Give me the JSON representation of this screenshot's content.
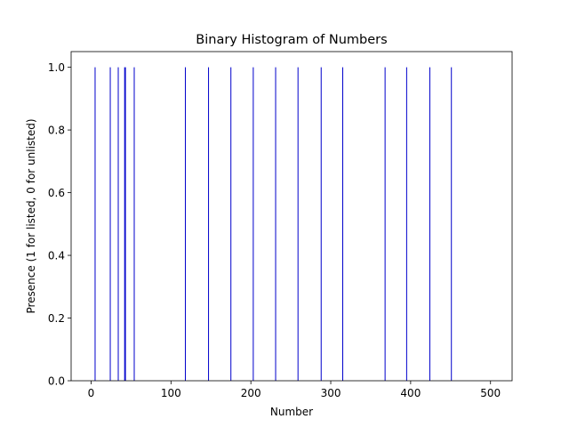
{
  "chart_data": {
    "type": "bar",
    "title": "Binary Histogram of Numbers",
    "xlabel": "Number",
    "ylabel": "Presence (1 for listed, 0 for unlisted)",
    "xlim": [
      -25,
      527
    ],
    "ylim": [
      0,
      1.05
    ],
    "xticks": [
      0,
      100,
      200,
      300,
      400,
      500
    ],
    "yticks": [
      "0.0",
      "0.2",
      "0.4",
      "0.6",
      "0.8",
      "1.0"
    ],
    "bar_color": "#0000cc",
    "grid": false,
    "x": [
      5,
      24,
      34,
      42,
      43,
      54,
      118,
      147,
      175,
      203,
      231,
      259,
      288,
      315,
      368,
      395,
      424,
      451
    ],
    "values": [
      1,
      1,
      1,
      1,
      1,
      1,
      1,
      1,
      1,
      1,
      1,
      1,
      1,
      1,
      1,
      1,
      1,
      1
    ]
  }
}
